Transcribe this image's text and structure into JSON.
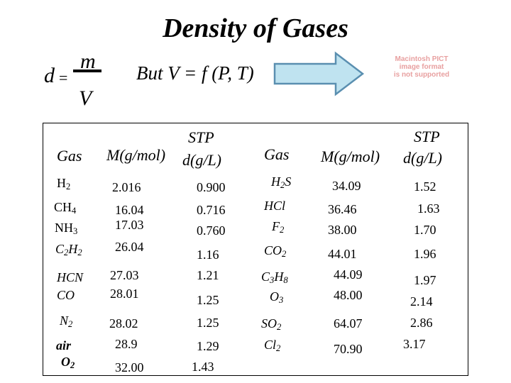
{
  "title": "Density of Gases",
  "formula": {
    "lhs": "d",
    "equals": "=",
    "numerator": "m",
    "denominator": "V",
    "relation": "But V = f (P, T)"
  },
  "placeholder_image": {
    "line1": "Macintosh PICT",
    "line2": "image format",
    "line3": "is not supported",
    "color": "#e8a0a0"
  },
  "arrow": {
    "fill": "#bfe3f0",
    "stroke": "#5a8fb0",
    "icon": "right-arrow-icon"
  },
  "table": {
    "left_headers": {
      "gas": "Gas",
      "molar_mass": "M(g/mol)",
      "stp": "STP",
      "density": "d(g/L)"
    },
    "right_headers": {
      "gas": "Gas",
      "molar_mass": "M(g/mol)",
      "stp": "STP",
      "density": "d(g/L)"
    },
    "left": {
      "gases": [
        {
          "base": "H",
          "sub": "2"
        },
        {
          "base": "CH",
          "sub": "4"
        },
        {
          "base": "NH",
          "sub": "3"
        },
        {
          "base": "C",
          "sub": "2",
          "base2": "H",
          "sub2": "2"
        },
        {
          "base": "HCN"
        },
        {
          "base": "CO"
        },
        {
          "base": "N",
          "sub": "2"
        },
        {
          "base": "air"
        },
        {
          "base": "O",
          "sub": "2"
        }
      ],
      "molar_masses": [
        "2.016",
        "16.04",
        "17.03",
        "26.04",
        "27.03",
        "28.01",
        "28.02",
        "28.9",
        "32.00"
      ],
      "densities": [
        "0.900",
        "0.716",
        "0.760",
        "1.16",
        "1.21",
        "1.25",
        "1.25",
        "1.29",
        "1.43"
      ]
    },
    "right": {
      "gases": [
        {
          "base": "H",
          "sub": "2",
          "base2": "S"
        },
        {
          "base": "HCl"
        },
        {
          "base": "F",
          "sub": "2"
        },
        {
          "base": "CO",
          "sub": "2"
        },
        {
          "base": "C",
          "sub": "3",
          "base2": "H",
          "sub2": "8"
        },
        {
          "base": "O",
          "sub": "3"
        },
        {
          "base": "SO",
          "sub": "2"
        },
        {
          "base": "Cl",
          "sub": "2"
        }
      ],
      "molar_masses": [
        "34.09",
        "36.46",
        "38.00",
        "44.01",
        "44.09",
        "48.00",
        "64.07",
        "70.90"
      ],
      "densities": [
        "1.52",
        "1.63",
        "1.70",
        "1.96",
        "1.97",
        "2.14",
        "2.86",
        "3.17"
      ]
    }
  }
}
